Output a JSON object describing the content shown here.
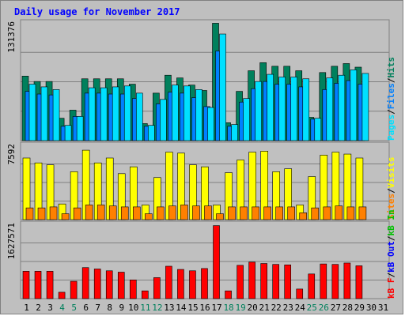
{
  "chart_data": {
    "type": "bar",
    "title": "Daily usage for November 2017",
    "categories": [
      "1",
      "2",
      "3",
      "4",
      "5",
      "6",
      "7",
      "8",
      "9",
      "10",
      "11",
      "12",
      "13",
      "14",
      "15",
      "16",
      "17",
      "18",
      "19",
      "20",
      "21",
      "22",
      "23",
      "24",
      "25",
      "26",
      "27",
      "28",
      "29",
      "30",
      "31"
    ],
    "weekend_days": [
      "4",
      "5",
      "11",
      "12",
      "18",
      "19",
      "25",
      "26"
    ],
    "panels": [
      {
        "id": "hits-files-pages",
        "ymax_label": "131376",
        "ylim": [
          0,
          131376
        ],
        "right_label_parts": [
          "Pages",
          "/",
          "Files",
          "/",
          "Hits"
        ],
        "series": [
          {
            "name": "Hits",
            "color": "#00805c",
            "values": [
              72000,
              66000,
              66000,
              25000,
              34000,
              69000,
              69000,
              69000,
              69000,
              63000,
              19000,
              53000,
              73000,
              70000,
              62000,
              56000,
              131000,
              20000,
              55000,
              78000,
              87000,
              83000,
              83000,
              78000,
              26000,
              76000,
              83000,
              86000,
              82000,
              0,
              0
            ]
          },
          {
            "name": "Files",
            "color": "#0080ff",
            "values": [
              55000,
              52000,
              51000,
              16000,
              27000,
              53000,
              53000,
              52000,
              52000,
              47000,
              16000,
              41000,
              54000,
              53000,
              48000,
              38000,
              100000,
              16000,
              43000,
              58000,
              66000,
              63000,
              63000,
              60000,
              24000,
              57000,
              64000,
              67000,
              63000,
              0,
              0
            ]
          },
          {
            "name": "Pages",
            "color": "#00e0ff",
            "values": [
              63000,
              60000,
              57000,
              17000,
              27000,
              59000,
              59000,
              60000,
              61000,
              53000,
              17000,
              46000,
              62000,
              61000,
              57000,
              37000,
              119000,
              18000,
              47000,
              66000,
              74000,
              71000,
              71000,
              69000,
              25000,
              70000,
              73000,
              79000,
              75000,
              0,
              0
            ]
          }
        ]
      },
      {
        "id": "visits-sites",
        "ymax_label": "7592",
        "ylim": [
          0,
          7592
        ],
        "right_label_parts": [
          "Sites",
          "/",
          "Visits"
        ],
        "series": [
          {
            "name": "Visits",
            "color": "#ffff00",
            "values": [
              6300,
              5800,
              5600,
              1600,
              4900,
              7100,
              5800,
              6300,
              4700,
              5400,
              1500,
              4300,
              6900,
              6800,
              5600,
              5400,
              1500,
              4800,
              6100,
              6900,
              7000,
              4900,
              5200,
              1500,
              4400,
              6600,
              6900,
              6700,
              6300,
              0,
              0
            ]
          },
          {
            "name": "Sites",
            "color": "#ff8000",
            "values": [
              1200,
              1200,
              1300,
              600,
              1200,
              1500,
              1500,
              1400,
              1300,
              1300,
              600,
              1300,
              1400,
              1500,
              1400,
              1400,
              600,
              1300,
              1300,
              1300,
              1300,
              1300,
              1300,
              700,
              1200,
              1300,
              1400,
              1300,
              1300,
              0,
              0
            ]
          }
        ]
      },
      {
        "id": "kb",
        "ymax_label": "1627571",
        "ylim": [
          0,
          1627571
        ],
        "right_label_parts": [
          "kB F",
          "/",
          "kB Out",
          "/",
          "kB In"
        ],
        "series": [
          {
            "name": "kB F",
            "color": "#ff0000",
            "values": [
              600000,
              600000,
              600000,
              140000,
              380000,
              680000,
              650000,
              610000,
              580000,
              410000,
              170000,
              460000,
              710000,
              640000,
              610000,
              660000,
              1600000,
              170000,
              730000,
              800000,
              770000,
              750000,
              740000,
              210000,
              540000,
              760000,
              750000,
              780000,
              720000,
              0,
              0
            ]
          }
        ]
      }
    ],
    "grid": true
  }
}
